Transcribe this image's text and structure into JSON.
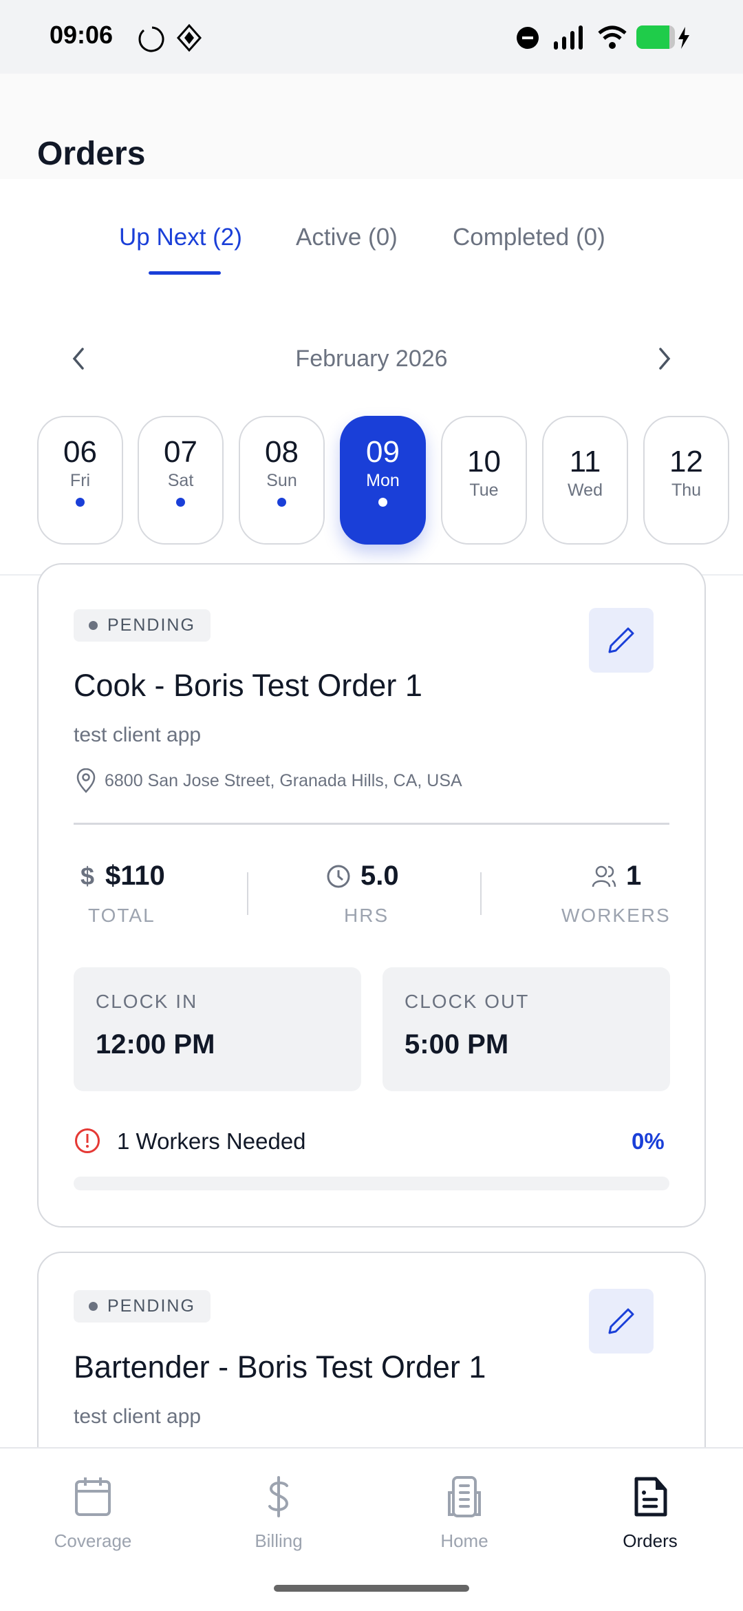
{
  "status_bar": {
    "time": "09:06",
    "battery_color": "#1fcc4a"
  },
  "header": {
    "title": "Orders"
  },
  "tabs": [
    {
      "label": "Up Next (2)",
      "active": true
    },
    {
      "label": "Active (0)",
      "active": false
    },
    {
      "label": "Completed (0)",
      "active": false
    }
  ],
  "calendar": {
    "month": "February 2026",
    "days": [
      {
        "num": "06",
        "dow": "Fri",
        "has_orders": true
      },
      {
        "num": "07",
        "dow": "Sat",
        "has_orders": true
      },
      {
        "num": "08",
        "dow": "Sun",
        "has_orders": true
      },
      {
        "num": "09",
        "dow": "Mon",
        "has_orders": true,
        "selected": true
      },
      {
        "num": "10",
        "dow": "Tue",
        "has_orders": false
      },
      {
        "num": "11",
        "dow": "Wed",
        "has_orders": false
      },
      {
        "num": "12",
        "dow": "Thu",
        "has_orders": false
      }
    ]
  },
  "orders": [
    {
      "status": "PENDING",
      "title": "Cook - Boris Test Order 1",
      "client": "test client app",
      "address": "6800 San Jose Street, Granada Hills, CA, USA",
      "total": "$110",
      "total_label": "TOTAL",
      "hours": "5.0",
      "hours_label": "HRS",
      "workers": "1",
      "workers_label": "WORKERS",
      "clock_in_label": "CLOCK IN",
      "clock_in": "12:00 PM",
      "clock_out_label": "CLOCK OUT",
      "clock_out": "5:00 PM",
      "needed": "1 Workers Needed",
      "fill_percent": "0%"
    },
    {
      "status": "PENDING",
      "title": "Bartender - Boris Test Order 1",
      "client": "test client app"
    }
  ],
  "colors": {
    "accent": "#1a3fd8",
    "alert": "#e53935"
  },
  "bottom_nav": [
    {
      "label": "Coverage",
      "icon": "calendar-icon"
    },
    {
      "label": "Billing",
      "icon": "dollar-icon"
    },
    {
      "label": "Home",
      "icon": "building-icon"
    },
    {
      "label": "Orders",
      "icon": "document-icon",
      "active": true
    }
  ]
}
